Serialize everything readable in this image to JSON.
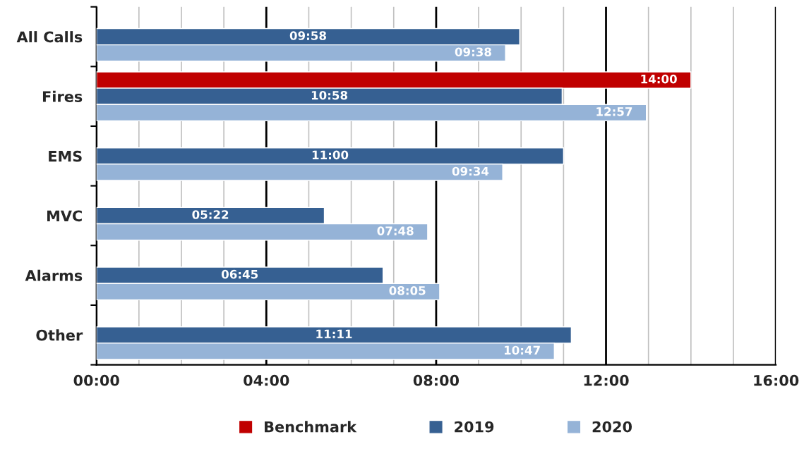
{
  "chart_data": {
    "type": "bar",
    "orientation": "horizontal",
    "categories": [
      "All Calls",
      "Fires",
      "EMS",
      "MVC",
      "Alarms",
      "Other"
    ],
    "series": [
      {
        "name": "Benchmark",
        "color": "#c00000",
        "values": [
          null,
          14,
          null,
          null,
          null,
          null
        ],
        "value_labels": [
          null,
          "14:00",
          null,
          null,
          null,
          null
        ]
      },
      {
        "name": "2019",
        "color": "#366092",
        "values": [
          9.967,
          10.967,
          11,
          5.367,
          6.75,
          11.183
        ],
        "value_labels": [
          "09:58",
          "10:58",
          "11:00",
          "05:22",
          "06:45",
          "11:11"
        ]
      },
      {
        "name": "2020",
        "color": "#95b3d7",
        "values": [
          9.633,
          12.95,
          9.567,
          7.8,
          8.083,
          10.783
        ],
        "value_labels": [
          "09:38",
          "12:57",
          "09:34",
          "07:48",
          "08:05",
          "10:47"
        ]
      }
    ],
    "xlim": [
      0,
      16
    ],
    "xticks": [
      {
        "value": 0,
        "label": "00:00"
      },
      {
        "value": 1,
        "label": null
      },
      {
        "value": 2,
        "label": null
      },
      {
        "value": 3,
        "label": null
      },
      {
        "value": 4,
        "label": "04:00"
      },
      {
        "value": 5,
        "label": null
      },
      {
        "value": 6,
        "label": null
      },
      {
        "value": 7,
        "label": null
      },
      {
        "value": 8,
        "label": "08:00"
      },
      {
        "value": 9,
        "label": null
      },
      {
        "value": 10,
        "label": null
      },
      {
        "value": 11,
        "label": null
      },
      {
        "value": 12,
        "label": "12:00"
      },
      {
        "value": 13,
        "label": null
      },
      {
        "value": 14,
        "label": null
      },
      {
        "value": 15,
        "label": null
      },
      {
        "value": 16,
        "label": "16:00"
      }
    ],
    "grid": "x",
    "legend": "bottom"
  }
}
